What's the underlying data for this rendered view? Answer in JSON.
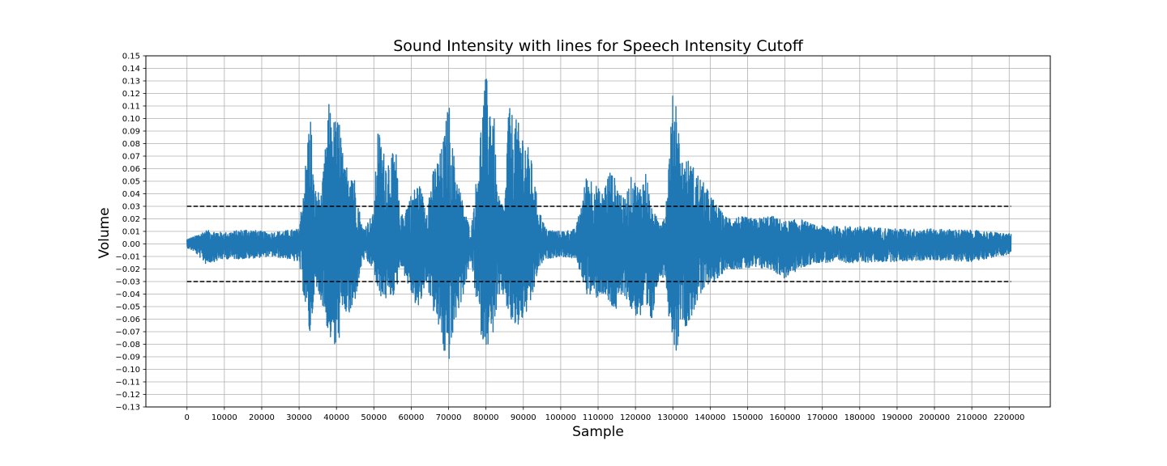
{
  "chart_data": {
    "type": "line",
    "title": "Sound Intensity with lines for Speech Intensity Cutoff",
    "xlabel": "Sample",
    "ylabel": "Volume",
    "xlim": [
      -11000,
      231000
    ],
    "ylim": [
      -0.13,
      0.15
    ],
    "x_ticks": [
      0,
      10000,
      20000,
      30000,
      40000,
      50000,
      60000,
      70000,
      80000,
      90000,
      100000,
      110000,
      120000,
      130000,
      140000,
      150000,
      160000,
      170000,
      180000,
      190000,
      200000,
      210000,
      220000
    ],
    "y_ticks": [
      -0.13,
      -0.12,
      -0.11,
      -0.1,
      -0.09,
      -0.08,
      -0.07,
      -0.06,
      -0.05,
      -0.04,
      -0.03,
      -0.02,
      -0.01,
      0.0,
      0.01,
      0.02,
      0.03,
      0.04,
      0.05,
      0.06,
      0.07,
      0.08,
      0.09,
      0.1,
      0.11,
      0.12,
      0.13,
      0.14,
      0.15
    ],
    "y_tick_labels": [
      "−0.13",
      "−0.12",
      "−0.11",
      "−0.10",
      "−0.09",
      "−0.08",
      "−0.07",
      "−0.06",
      "−0.05",
      "−0.04",
      "−0.03",
      "−0.02",
      "−0.01",
      "0.00",
      "0.01",
      "0.02",
      "0.03",
      "0.04",
      "0.05",
      "0.06",
      "0.07",
      "0.08",
      "0.09",
      "0.10",
      "0.11",
      "0.12",
      "0.13",
      "0.14",
      "0.15"
    ],
    "grid": true,
    "series": [
      {
        "color": "#1f77b4",
        "x_range": [
          0,
          220500
        ],
        "envelope": [
          {
            "x": 0,
            "max": 0.004,
            "min": -0.003
          },
          {
            "x": 2000,
            "max": 0.006,
            "min": -0.006
          },
          {
            "x": 5000,
            "max": 0.011,
            "min": -0.016
          },
          {
            "x": 10000,
            "max": 0.009,
            "min": -0.012
          },
          {
            "x": 16000,
            "max": 0.012,
            "min": -0.012
          },
          {
            "x": 22000,
            "max": 0.009,
            "min": -0.01
          },
          {
            "x": 27000,
            "max": 0.011,
            "min": -0.012
          },
          {
            "x": 30000,
            "max": 0.012,
            "min": -0.015
          },
          {
            "x": 32000,
            "max": 0.073,
            "min": -0.058
          },
          {
            "x": 33000,
            "max": 0.113,
            "min": -0.078
          },
          {
            "x": 34000,
            "max": 0.045,
            "min": -0.04
          },
          {
            "x": 36000,
            "max": 0.04,
            "min": -0.045
          },
          {
            "x": 38000,
            "max": 0.113,
            "min": -0.075
          },
          {
            "x": 39000,
            "max": 0.1,
            "min": -0.08
          },
          {
            "x": 40000,
            "max": 0.1,
            "min": -0.091
          },
          {
            "x": 41000,
            "max": 0.1,
            "min": -0.07
          },
          {
            "x": 42000,
            "max": 0.06,
            "min": -0.055
          },
          {
            "x": 44000,
            "max": 0.07,
            "min": -0.06
          },
          {
            "x": 46000,
            "max": 0.03,
            "min": -0.03
          },
          {
            "x": 47000,
            "max": 0.012,
            "min": -0.012
          },
          {
            "x": 50000,
            "max": 0.025,
            "min": -0.02
          },
          {
            "x": 51000,
            "max": 0.095,
            "min": -0.04
          },
          {
            "x": 53000,
            "max": 0.07,
            "min": -0.045
          },
          {
            "x": 56000,
            "max": 0.073,
            "min": -0.04
          },
          {
            "x": 57000,
            "max": 0.02,
            "min": -0.015
          },
          {
            "x": 60000,
            "max": 0.04,
            "min": -0.04
          },
          {
            "x": 62000,
            "max": 0.05,
            "min": -0.055
          },
          {
            "x": 64000,
            "max": 0.03,
            "min": -0.03
          },
          {
            "x": 66000,
            "max": 0.06,
            "min": -0.055
          },
          {
            "x": 68000,
            "max": 0.075,
            "min": -0.075
          },
          {
            "x": 69000,
            "max": 0.09,
            "min": -0.093
          },
          {
            "x": 70000,
            "max": 0.118,
            "min": -0.095
          },
          {
            "x": 71000,
            "max": 0.08,
            "min": -0.08
          },
          {
            "x": 72000,
            "max": 0.06,
            "min": -0.06
          },
          {
            "x": 74000,
            "max": 0.03,
            "min": -0.04
          },
          {
            "x": 76000,
            "max": 0.01,
            "min": -0.012
          },
          {
            "x": 78000,
            "max": 0.07,
            "min": -0.06
          },
          {
            "x": 79000,
            "max": 0.11,
            "min": -0.078
          },
          {
            "x": 80000,
            "max": 0.135,
            "min": -0.08
          },
          {
            "x": 81000,
            "max": 0.12,
            "min": -0.083
          },
          {
            "x": 82000,
            "max": 0.115,
            "min": -0.07
          },
          {
            "x": 83000,
            "max": 0.04,
            "min": -0.05
          },
          {
            "x": 85000,
            "max": 0.03,
            "min": -0.04
          },
          {
            "x": 86000,
            "max": 0.11,
            "min": -0.06
          },
          {
            "x": 88000,
            "max": 0.1,
            "min": -0.07
          },
          {
            "x": 90000,
            "max": 0.09,
            "min": -0.06
          },
          {
            "x": 92000,
            "max": 0.07,
            "min": -0.05
          },
          {
            "x": 94000,
            "max": 0.03,
            "min": -0.02
          },
          {
            "x": 96000,
            "max": 0.012,
            "min": -0.012
          },
          {
            "x": 100000,
            "max": 0.01,
            "min": -0.01
          },
          {
            "x": 104000,
            "max": 0.012,
            "min": -0.012
          },
          {
            "x": 106000,
            "max": 0.04,
            "min": -0.03
          },
          {
            "x": 107000,
            "max": 0.058,
            "min": -0.04
          },
          {
            "x": 109000,
            "max": 0.05,
            "min": -0.045
          },
          {
            "x": 111000,
            "max": 0.04,
            "min": -0.04
          },
          {
            "x": 113000,
            "max": 0.06,
            "min": -0.05
          },
          {
            "x": 115000,
            "max": 0.05,
            "min": -0.055
          },
          {
            "x": 117000,
            "max": 0.035,
            "min": -0.04
          },
          {
            "x": 119000,
            "max": 0.055,
            "min": -0.055
          },
          {
            "x": 121000,
            "max": 0.045,
            "min": -0.06
          },
          {
            "x": 123000,
            "max": 0.06,
            "min": -0.06
          },
          {
            "x": 124000,
            "max": 0.03,
            "min": -0.072
          },
          {
            "x": 126000,
            "max": 0.02,
            "min": -0.03
          },
          {
            "x": 128000,
            "max": 0.025,
            "min": -0.025
          },
          {
            "x": 129000,
            "max": 0.073,
            "min": -0.06
          },
          {
            "x": 130000,
            "max": 0.12,
            "min": -0.075
          },
          {
            "x": 131000,
            "max": 0.125,
            "min": -0.09
          },
          {
            "x": 132000,
            "max": 0.07,
            "min": -0.06
          },
          {
            "x": 134000,
            "max": 0.068,
            "min": -0.068
          },
          {
            "x": 136000,
            "max": 0.06,
            "min": -0.05
          },
          {
            "x": 138000,
            "max": 0.05,
            "min": -0.04
          },
          {
            "x": 140000,
            "max": 0.04,
            "min": -0.03
          },
          {
            "x": 142000,
            "max": 0.03,
            "min": -0.03
          },
          {
            "x": 144000,
            "max": 0.022,
            "min": -0.02
          },
          {
            "x": 148000,
            "max": 0.022,
            "min": -0.02
          },
          {
            "x": 152000,
            "max": 0.02,
            "min": -0.02
          },
          {
            "x": 156000,
            "max": 0.023,
            "min": -0.02
          },
          {
            "x": 160000,
            "max": 0.018,
            "min": -0.028
          },
          {
            "x": 164000,
            "max": 0.02,
            "min": -0.02
          },
          {
            "x": 168000,
            "max": 0.015,
            "min": -0.015
          },
          {
            "x": 172000,
            "max": 0.014,
            "min": -0.015
          },
          {
            "x": 180000,
            "max": 0.014,
            "min": -0.015
          },
          {
            "x": 190000,
            "max": 0.012,
            "min": -0.014
          },
          {
            "x": 200000,
            "max": 0.012,
            "min": -0.013
          },
          {
            "x": 210000,
            "max": 0.011,
            "min": -0.014
          },
          {
            "x": 220500,
            "max": 0.008,
            "min": -0.008
          }
        ]
      }
    ],
    "cutoff_lines": [
      {
        "y": 0.03,
        "x_range": [
          0,
          220500
        ],
        "style": "dashed",
        "color": "#000000"
      },
      {
        "y": -0.03,
        "x_range": [
          0,
          220500
        ],
        "style": "dashed",
        "color": "#000000"
      }
    ]
  }
}
